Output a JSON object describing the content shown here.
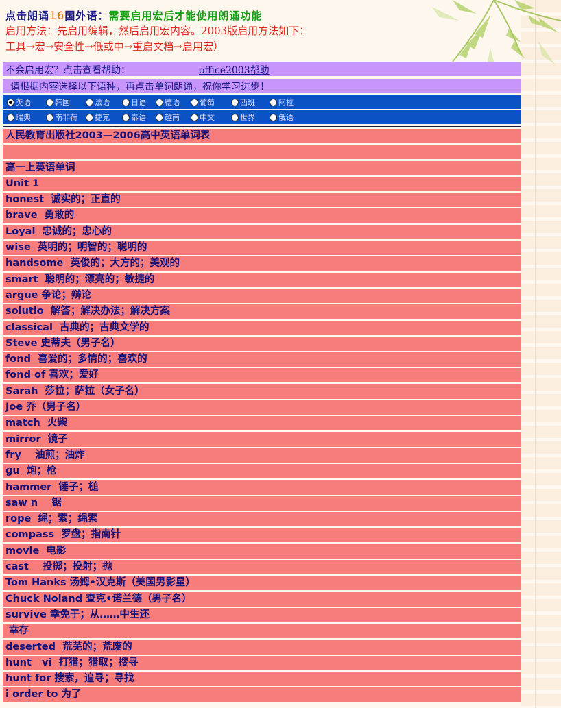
{
  "header": {
    "line1_a": "点击朗诵",
    "line1_num": "16",
    "line1_b": "国外语：",
    "line1_c": "需要启用宏后才能使用朗诵功能",
    "line2": "启用方法：先启用编辑，然后启用宏内容。2003版启用方法如下：",
    "line3": "工具→宏→安全性→低或中→重启文档→启用宏）"
  },
  "help": {
    "text": "不会启用宏？点击查看帮助：",
    "link": "office2003帮助"
  },
  "info": {
    "text": "请根据内容选择以下语种，再点击单词朗诵，祝你学习进步！"
  },
  "languages_row1": [
    {
      "label": "英语",
      "selected": true
    },
    {
      "label": "韩国",
      "selected": false
    },
    {
      "label": "法语",
      "selected": false
    },
    {
      "label": "日语",
      "selected": false
    },
    {
      "label": "德语",
      "selected": false
    },
    {
      "label": "葡萄",
      "selected": false
    },
    {
      "label": "西班",
      "selected": false
    },
    {
      "label": "阿拉",
      "selected": false
    }
  ],
  "languages_row2": [
    {
      "label": "瑞典",
      "selected": false
    },
    {
      "label": "南非荷",
      "selected": false
    },
    {
      "label": "捷克",
      "selected": false
    },
    {
      "label": "泰语",
      "selected": false
    },
    {
      "label": "越南",
      "selected": false
    },
    {
      "label": "中文",
      "selected": false
    },
    {
      "label": "世界",
      "selected": false
    },
    {
      "label": "俄语",
      "selected": false
    }
  ],
  "rows": [
    "人民教育出版社2003—2006高中英语单词表",
    "",
    "高一上英语单词",
    "Unit 1",
    "honest  诚实的；正直的",
    "brave  勇敢的",
    "Loyal  忠诚的；忠心的",
    "wise  英明的；明智的；聪明的",
    "handsome  英俊的；大方的；美观的",
    "smart  聪明的；漂亮的；敏捷的",
    "argue 争论；辩论",
    "solutio  解答；解决办法；解决方案",
    "classical  古典的；古典文学的",
    "Steve 史蒂夫（男子名）",
    "fond  喜爱的；多情的；喜欢的",
    "fond of 喜欢；爱好",
    "Sarah  莎拉；萨拉（女子名）",
    "Joe 乔（男子名）",
    "match  火柴",
    "mirror  镜子",
    "fry    油煎；油炸",
    "gu  炮；枪",
    "hammer  锤子；槌",
    "saw n    锯",
    "rope  绳；索；绳索",
    "compass  罗盘；指南针",
    "movie  电影",
    "cast    投掷；投射；抛",
    "Tom Hanks 汤姆•汉克斯（美国男影星）",
    "Chuck Noland 查克•诺兰德（男子名）",
    "survive 幸免于；从……中生还",
    " 幸存",
    "deserted  荒芜的；荒废的",
    "hunt   vi  打猎；猎取；搜寻",
    "hunt for 搜索，追寻；寻找",
    "i order to 为了"
  ],
  "colors": {
    "row_bg": "#f77d7d",
    "row_text": "#12127a",
    "purple_bar": "#c795fb",
    "blue_bar": "#0b52c4",
    "header_red": "#e0271e"
  }
}
